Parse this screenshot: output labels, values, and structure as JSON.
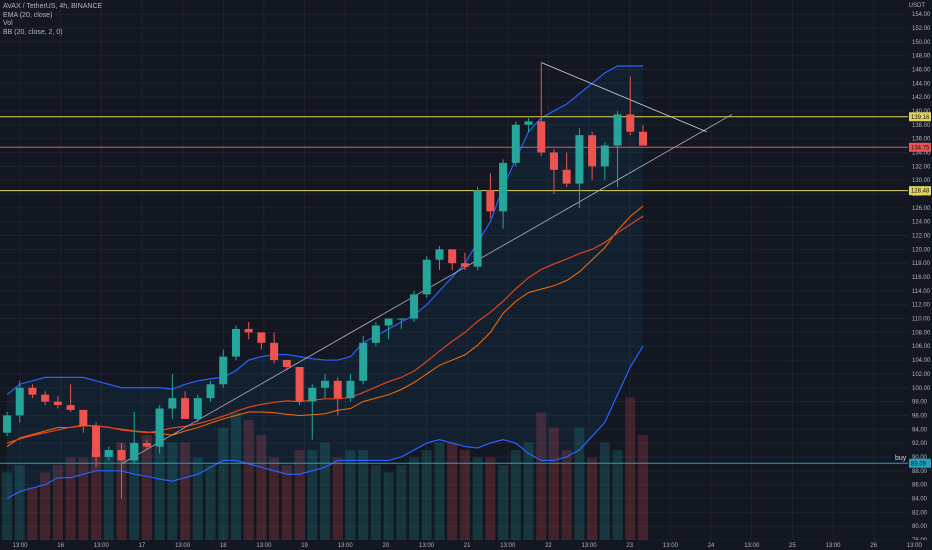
{
  "header": {
    "symbol_line": "AVAX / TetherUS, 4h, BINANCE",
    "ema_label": "EMA (20, close)",
    "vol_label": "Vol",
    "bb_label": "BB (20, close, 2, 0)",
    "unit": "USDT"
  },
  "colors": {
    "background": "#131722",
    "up": "#26a69a",
    "down": "#ef5350",
    "bb_band": "#2962ff",
    "ema": "#e3431e",
    "level_line": "#e0d35a",
    "buy_line": "#22a2b8",
    "trendline": "#b2b5be"
  },
  "chart_data": {
    "type": "candlestick",
    "title": "AVAX / TetherUS, 4h, BINANCE",
    "y_axis": {
      "ylim": [
        77,
        155
      ],
      "ticks": [
        78,
        80,
        82,
        84,
        86,
        88,
        90,
        92,
        94,
        96,
        98,
        100,
        102,
        104,
        106,
        108,
        110,
        112,
        114,
        116,
        118,
        120,
        122,
        124,
        126,
        128,
        130,
        132,
        134,
        136,
        138,
        140,
        142,
        144,
        146,
        148,
        150,
        152,
        154
      ]
    },
    "x_axis": {
      "tick_labels": [
        "13:00",
        "16",
        "13:00",
        "17",
        "13:00",
        "18",
        "13:00",
        "19",
        "13:00",
        "20",
        "13:00",
        "21",
        "13:00",
        "22",
        "13:00",
        "23",
        "13:00",
        "24",
        "13:00",
        "25",
        "13:00",
        "26",
        "13:00"
      ]
    },
    "candles": [
      {
        "o": 93.5,
        "h": 96.5,
        "l": 93,
        "c": 96
      },
      {
        "o": 96,
        "h": 101,
        "l": 95,
        "c": 100
      },
      {
        "o": 100,
        "h": 100.5,
        "l": 98.5,
        "c": 99
      },
      {
        "o": 99,
        "h": 99.5,
        "l": 97.5,
        "c": 98
      },
      {
        "o": 98,
        "h": 98.8,
        "l": 97,
        "c": 97.5
      },
      {
        "o": 97.5,
        "h": 100.5,
        "l": 96.5,
        "c": 96.8
      },
      {
        "o": 96.8,
        "h": 96.8,
        "l": 93.5,
        "c": 94.5
      },
      {
        "o": 94.5,
        "h": 95,
        "l": 88.5,
        "c": 90
      },
      {
        "o": 90,
        "h": 91.5,
        "l": 89.5,
        "c": 91
      },
      {
        "o": 91,
        "h": 92,
        "l": 84,
        "c": 89.5
      },
      {
        "o": 89.5,
        "h": 96.5,
        "l": 89,
        "c": 92
      },
      {
        "o": 92,
        "h": 92.5,
        "l": 91,
        "c": 91.5
      },
      {
        "o": 91.5,
        "h": 97.5,
        "l": 90.5,
        "c": 97
      },
      {
        "o": 97,
        "h": 102,
        "l": 95.5,
        "c": 98.5
      },
      {
        "o": 98.5,
        "h": 99.5,
        "l": 95.5,
        "c": 95.5
      },
      {
        "o": 95.5,
        "h": 99,
        "l": 95,
        "c": 98.5
      },
      {
        "o": 98.5,
        "h": 101,
        "l": 98,
        "c": 100.5
      },
      {
        "o": 100.5,
        "h": 105.5,
        "l": 100,
        "c": 104.5
      },
      {
        "o": 104.5,
        "h": 109,
        "l": 104,
        "c": 108.5
      },
      {
        "o": 108.5,
        "h": 109.5,
        "l": 107,
        "c": 108
      },
      {
        "o": 108,
        "h": 108,
        "l": 105.5,
        "c": 106.5
      },
      {
        "o": 106.5,
        "h": 108,
        "l": 103.5,
        "c": 104
      },
      {
        "o": 104,
        "h": 104,
        "l": 102.5,
        "c": 103
      },
      {
        "o": 103,
        "h": 103,
        "l": 97.5,
        "c": 98
      },
      {
        "o": 98,
        "h": 100.5,
        "l": 92.5,
        "c": 100
      },
      {
        "o": 100,
        "h": 102,
        "l": 98.5,
        "c": 101
      },
      {
        "o": 101,
        "h": 101.5,
        "l": 96,
        "c": 98.5
      },
      {
        "o": 98.5,
        "h": 102,
        "l": 98,
        "c": 101
      },
      {
        "o": 101,
        "h": 107.5,
        "l": 100.5,
        "c": 106.5
      },
      {
        "o": 106.5,
        "h": 109.5,
        "l": 106,
        "c": 109
      },
      {
        "o": 109,
        "h": 109.5,
        "l": 107,
        "c": 110
      },
      {
        "o": 110,
        "h": 110,
        "l": 108.5,
        "c": 110
      },
      {
        "o": 110,
        "h": 114,
        "l": 109.5,
        "c": 113.5
      },
      {
        "o": 113.5,
        "h": 119,
        "l": 113,
        "c": 118.5
      },
      {
        "o": 118.5,
        "h": 120.5,
        "l": 117,
        "c": 120
      },
      {
        "o": 120,
        "h": 120,
        "l": 117,
        "c": 118
      },
      {
        "o": 118,
        "h": 119.5,
        "l": 117,
        "c": 117.5
      },
      {
        "o": 117.5,
        "h": 129,
        "l": 117,
        "c": 128.5
      },
      {
        "o": 128.5,
        "h": 131,
        "l": 124.5,
        "c": 125.5
      },
      {
        "o": 125.5,
        "h": 133,
        "l": 123,
        "c": 132.5
      },
      {
        "o": 132.5,
        "h": 138.5,
        "l": 132,
        "c": 138
      },
      {
        "o": 138,
        "h": 139,
        "l": 137,
        "c": 138.5
      },
      {
        "o": 138.5,
        "h": 147,
        "l": 133.5,
        "c": 134
      },
      {
        "o": 134,
        "h": 134.5,
        "l": 128,
        "c": 131.5
      },
      {
        "o": 131.5,
        "h": 134,
        "l": 129,
        "c": 129.5
      },
      {
        "o": 129.5,
        "h": 137.5,
        "l": 126,
        "c": 136.5
      },
      {
        "o": 136.5,
        "h": 137,
        "l": 130,
        "c": 132
      },
      {
        "o": 132,
        "h": 135.5,
        "l": 130,
        "c": 135
      },
      {
        "o": 135,
        "h": 140,
        "l": 129,
        "c": 139.5
      },
      {
        "o": 139.5,
        "h": 145,
        "l": 136.5,
        "c": 137
      },
      {
        "o": 137,
        "h": 138,
        "l": 135,
        "c": 135
      }
    ],
    "volume": [
      9,
      10,
      7,
      9,
      10,
      11,
      11,
      12,
      12,
      13,
      13,
      14,
      14,
      13,
      13,
      11,
      10,
      15,
      17,
      16,
      14,
      11,
      10,
      12,
      12,
      13,
      11,
      12,
      12,
      10,
      9,
      10,
      11,
      12,
      13,
      13,
      12,
      11,
      11,
      10,
      12,
      13,
      17,
      15,
      12,
      15,
      11,
      13,
      12,
      19,
      14
    ],
    "ema20": [
      92,
      92.6,
      93.1,
      93.5,
      93.9,
      94.3,
      94.6,
      94.5,
      94.3,
      93.9,
      93.7,
      93.5,
      93.8,
      94.2,
      94.4,
      94.8,
      95.3,
      95.9,
      96.6,
      97.2,
      97.6,
      97.9,
      98.1,
      98,
      98.2,
      98.4,
      98.4,
      98.6,
      99.3,
      100.1,
      100.9,
      101.5,
      102.4,
      103.8,
      105.3,
      106.7,
      108,
      109.6,
      110.9,
      112.5,
      114.3,
      115.9,
      117.1,
      117.9,
      118.6,
      119.4,
      120,
      121,
      122.4,
      123.6,
      124.8
    ],
    "bb_upper": [
      99,
      100.5,
      101,
      101.5,
      101.5,
      101.5,
      101.5,
      101,
      100.5,
      100,
      100,
      100,
      100,
      99.8,
      100.5,
      101,
      101.3,
      101.5,
      102.5,
      104,
      104.5,
      104.8,
      104.8,
      104.5,
      104.2,
      104,
      104,
      104.5,
      106.5,
      107.5,
      108.5,
      109.5,
      110.5,
      112,
      114,
      116,
      118,
      121,
      124,
      129,
      133,
      137,
      139,
      140,
      141,
      142.5,
      144,
      145.5,
      146.5,
      146.5,
      146.5
    ],
    "bb_lower": [
      84,
      85,
      85.5,
      86,
      87,
      87,
      87.5,
      88,
      88,
      88,
      87.5,
      87.2,
      86.8,
      86.5,
      87,
      87.5,
      88.5,
      89.5,
      89.5,
      89,
      88.5,
      88,
      87.5,
      87.5,
      88,
      88.5,
      89.5,
      89.5,
      89.5,
      89.5,
      89.5,
      90,
      91,
      92,
      92.5,
      92,
      91.5,
      91.3,
      92,
      92.5,
      92,
      90.5,
      89.5,
      89.5,
      90,
      91,
      93,
      95,
      99,
      103,
      106
    ],
    "levels": [
      {
        "price": 139.16,
        "label": "139.16",
        "color": "#e0d35a"
      },
      {
        "price": 134.75,
        "label": "134.75",
        "color": "#ef5350"
      },
      {
        "price": 128.48,
        "label": "128.48",
        "color": "#e0d35a"
      },
      {
        "price": 89.09,
        "label": "89.09",
        "color": "#22a2b8",
        "tag": "buy"
      }
    ]
  }
}
